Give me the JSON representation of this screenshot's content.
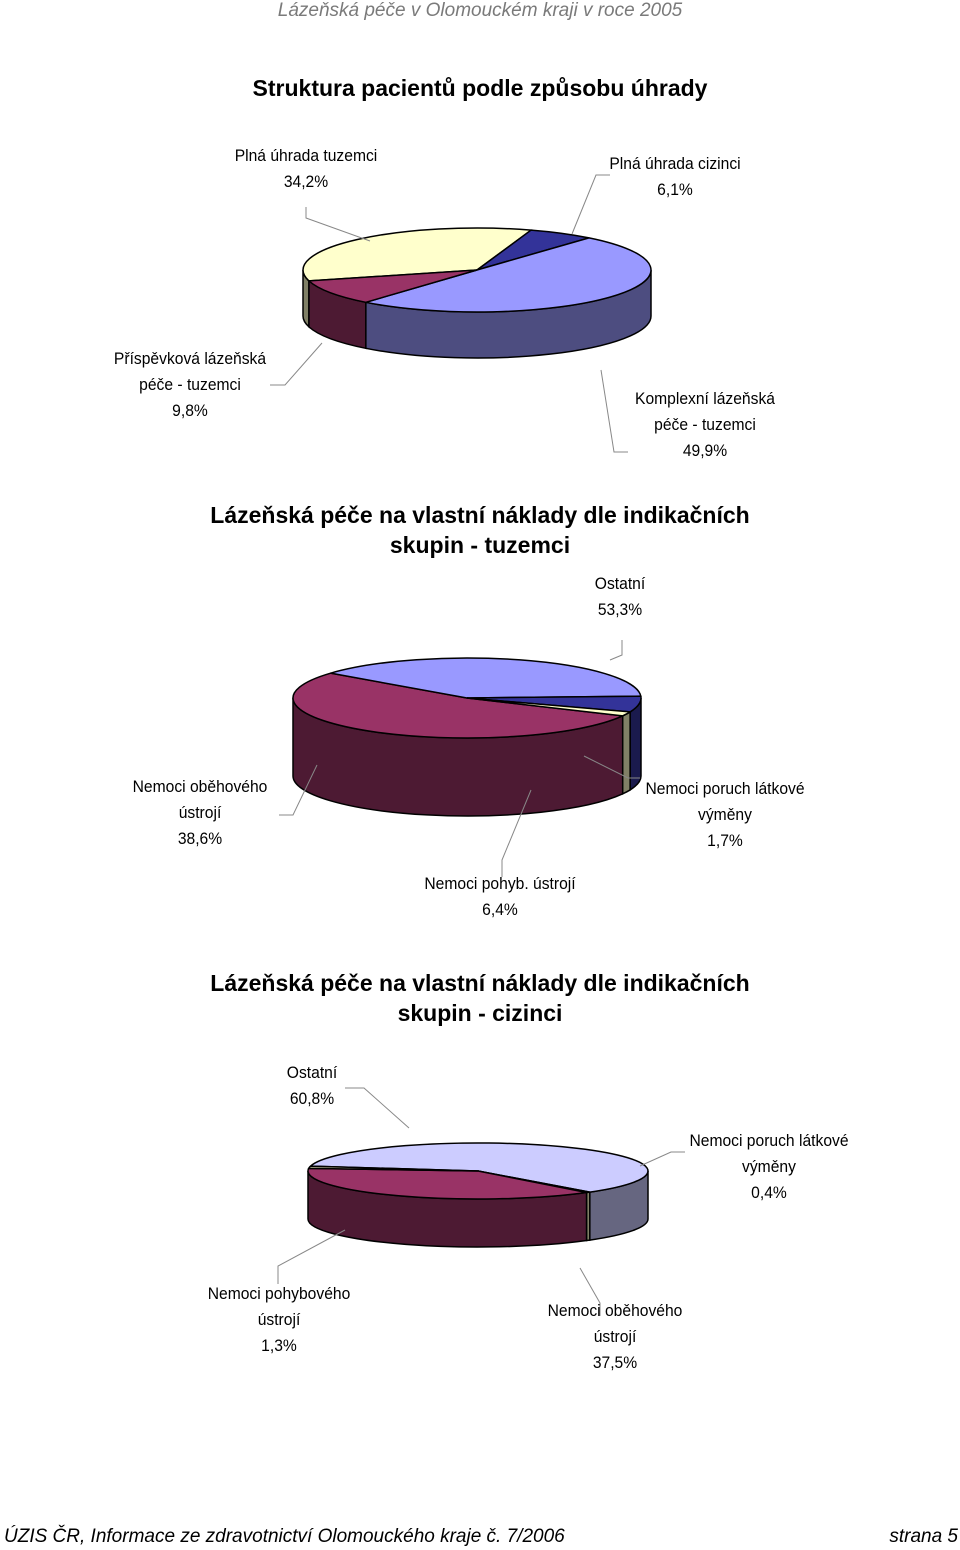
{
  "header": "Lázeňská péče v Olomouckém kraji v roce 2005",
  "footer": {
    "left": "ÚZIS ČR, Informace ze zdravotnictví Olomouckého kraje č. 7/2006",
    "right": "strana 5"
  },
  "chart_data": [
    {
      "type": "pie",
      "title": "Struktura pacientů podle způsobu úhrady",
      "slices": [
        {
          "label": [
            "Plná úhrada tuzemci",
            "34,2%"
          ],
          "value": 34.2,
          "color": "#FFFFCC"
        },
        {
          "label": [
            "Plná úhrada cizinci",
            "6,1%"
          ],
          "value": 6.1,
          "color": "#333399"
        },
        {
          "label": [
            "Komplexní lázeňská",
            "péče - tuzemci",
            "49,9%"
          ],
          "value": 49.9,
          "color": "#9999FF"
        },
        {
          "label": [
            "Příspěvková lázeňská",
            "péče - tuzemci",
            "9,8%"
          ],
          "value": 9.8,
          "color": "#993366"
        }
      ]
    },
    {
      "type": "pie",
      "title": [
        "Lázeňská péče na vlastní náklady dle indikačních",
        "skupin - tuzemci"
      ],
      "slices": [
        {
          "label": [
            "Ostatní",
            "53,3%"
          ],
          "value": 53.3,
          "color": "#993366"
        },
        {
          "label": [
            "Nemoci oběhového",
            "ústrojí",
            "38,6%"
          ],
          "value": 38.6,
          "color": "#9999FF"
        },
        {
          "label": [
            "Nemoci pohyb. ústrojí",
            "6,4%"
          ],
          "value": 6.4,
          "color": "#333399"
        },
        {
          "label": [
            "Nemoci poruch látkové",
            "výměny",
            "1,7%"
          ],
          "value": 1.7,
          "color": "#FFFFCC"
        }
      ]
    },
    {
      "type": "pie",
      "title": [
        "Lázeňská péče na vlastní náklady dle indikačních",
        "skupin - cizinci"
      ],
      "slices": [
        {
          "label": [
            "Ostatní",
            "60,8%"
          ],
          "value": 60.8,
          "color": "#CCCCFF"
        },
        {
          "label": [
            "Nemoci poruch látkové",
            "výměny",
            "0,4%"
          ],
          "value": 0.4,
          "color": "#FFFFCC"
        },
        {
          "label": [
            "Nemoci oběhového",
            "ústrojí",
            "37,5%"
          ],
          "value": 37.5,
          "color": "#993366"
        },
        {
          "label": [
            "Nemoci pohybového",
            "ústrojí",
            "1,3%"
          ],
          "value": 1.3,
          "color": "#C0C0A0"
        }
      ]
    }
  ]
}
